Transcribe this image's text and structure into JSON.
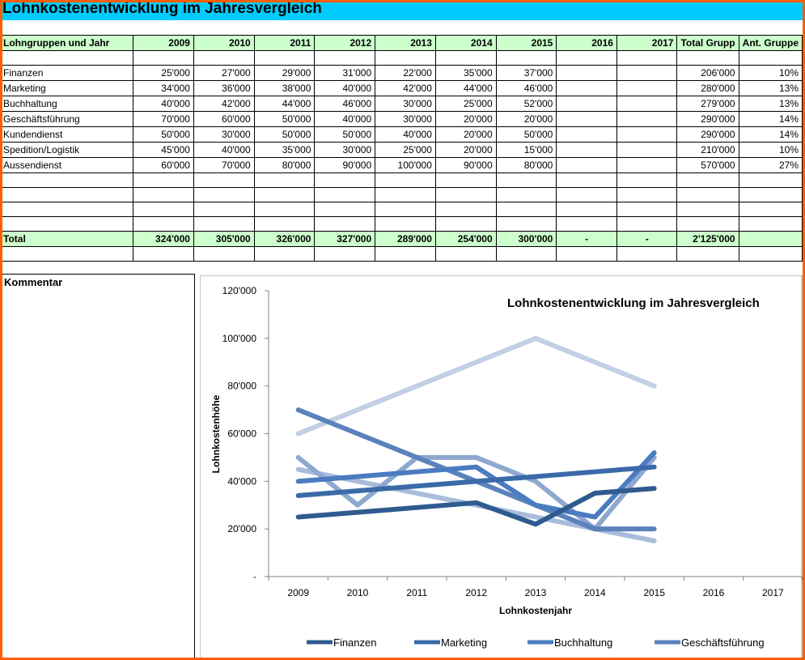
{
  "title": "Lohnkostenentwicklung im Jahresvergleich",
  "table": {
    "headers": [
      "Lohngruppen und Jahr",
      "2009",
      "2010",
      "2011",
      "2012",
      "2013",
      "2014",
      "2015",
      "2016",
      "2017",
      "Total Grupp",
      "Ant. Gruppe"
    ],
    "rows": [
      [
        "Finanzen",
        "25'000",
        "27'000",
        "29'000",
        "31'000",
        "22'000",
        "35'000",
        "37'000",
        "",
        "",
        "206'000",
        "10%"
      ],
      [
        "Marketing",
        "34'000",
        "36'000",
        "38'000",
        "40'000",
        "42'000",
        "44'000",
        "46'000",
        "",
        "",
        "280'000",
        "13%"
      ],
      [
        "Buchhaltung",
        "40'000",
        "42'000",
        "44'000",
        "46'000",
        "30'000",
        "25'000",
        "52'000",
        "",
        "",
        "279'000",
        "13%"
      ],
      [
        "Geschäftsführung",
        "70'000",
        "60'000",
        "50'000",
        "40'000",
        "30'000",
        "20'000",
        "20'000",
        "",
        "",
        "290'000",
        "14%"
      ],
      [
        "Kundendienst",
        "50'000",
        "30'000",
        "50'000",
        "50'000",
        "40'000",
        "20'000",
        "50'000",
        "",
        "",
        "290'000",
        "14%"
      ],
      [
        "Spedition/Logistik",
        "45'000",
        "40'000",
        "35'000",
        "30'000",
        "25'000",
        "20'000",
        "15'000",
        "",
        "",
        "210'000",
        "10%"
      ],
      [
        "Aussendienst",
        "60'000",
        "70'000",
        "80'000",
        "90'000",
        "100'000",
        "90'000",
        "80'000",
        "",
        "",
        "570'000",
        "27%"
      ]
    ],
    "total": [
      "Total",
      "324'000",
      "305'000",
      "326'000",
      "327'000",
      "289'000",
      "254'000",
      "300'000",
      "-",
      "-",
      "2'125'000",
      ""
    ]
  },
  "comment_label": "Kommentar",
  "chart_data": {
    "type": "line",
    "title": "Lohnkostenentwicklung  im Jahresvergleich",
    "xlabel": "Lohnkostenjahr",
    "ylabel": "Lohnkostenhöhe",
    "categories": [
      "2009",
      "2010",
      "2011",
      "2012",
      "2013",
      "2014",
      "2015",
      "2016",
      "2017"
    ],
    "ylim": [
      0,
      120000
    ],
    "y_ticks": [
      "-",
      "20'000",
      "40'000",
      "60'000",
      "80'000",
      "100'000",
      "120'000"
    ],
    "series": [
      {
        "name": "Finanzen",
        "color": "#2f5b8f",
        "values": [
          25000,
          27000,
          29000,
          31000,
          22000,
          35000,
          37000,
          null,
          null
        ]
      },
      {
        "name": "Marketing",
        "color": "#3a6aa8",
        "values": [
          34000,
          36000,
          38000,
          40000,
          42000,
          44000,
          46000,
          null,
          null
        ]
      },
      {
        "name": "Buchhaltung",
        "color": "#4a7cc0",
        "values": [
          40000,
          42000,
          44000,
          46000,
          30000,
          25000,
          52000,
          null,
          null
        ]
      },
      {
        "name": "Geschäftsführung",
        "color": "#5b82bb",
        "values": [
          70000,
          60000,
          50000,
          40000,
          30000,
          20000,
          20000,
          null,
          null
        ]
      },
      {
        "color": "#8fa8d0",
        "values": [
          50000,
          30000,
          50000,
          50000,
          40000,
          20000,
          50000,
          null,
          null
        ]
      },
      {
        "color": "#a9bcdb",
        "values": [
          45000,
          40000,
          35000,
          30000,
          25000,
          20000,
          15000,
          null,
          null
        ]
      },
      {
        "color": "#c3cfe4",
        "values": [
          60000,
          70000,
          80000,
          90000,
          100000,
          90000,
          80000,
          null,
          null
        ]
      }
    ],
    "legend": "bottom"
  }
}
